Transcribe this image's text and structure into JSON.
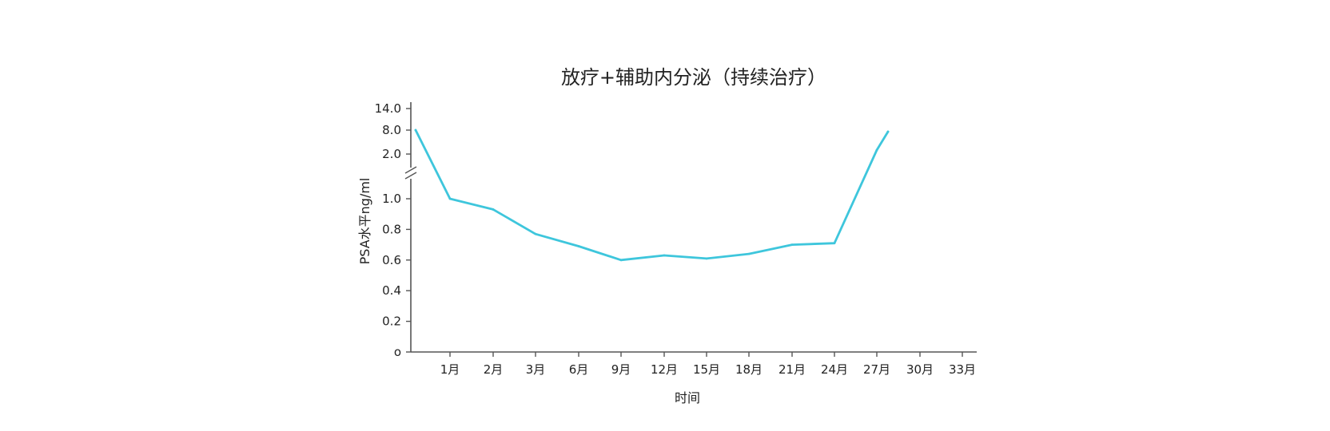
{
  "chart_data": {
    "type": "line",
    "title": "放疗+辅助内分泌（持续治疗）",
    "xlabel": "时间",
    "ylabel": "PSA水平ng/ml",
    "x_ticks": [
      "1月",
      "2月",
      "3月",
      "6月",
      "9月",
      "12月",
      "15月",
      "18月",
      "21月",
      "24月",
      "27月",
      "30月",
      "33月"
    ],
    "y_ticks_lower": [
      "o",
      "0.2",
      "0.4",
      "0.6",
      "0.8",
      "1.0"
    ],
    "y_ticks_upper": [
      "2.0",
      "8.0",
      "14.0"
    ],
    "y_axis_break": true,
    "grid": false,
    "line_color": "#3ec6dc",
    "series": [
      {
        "x": [
          "0月",
          "1月",
          "2月",
          "3月",
          "6月",
          "9月",
          "12月",
          "15月",
          "18月",
          "21月",
          "24月",
          "27月",
          "28月"
        ],
        "values": [
          8.0,
          1.0,
          0.93,
          0.77,
          0.69,
          0.6,
          0.63,
          0.61,
          0.64,
          0.7,
          0.71,
          3.0,
          7.6
        ]
      }
    ]
  }
}
